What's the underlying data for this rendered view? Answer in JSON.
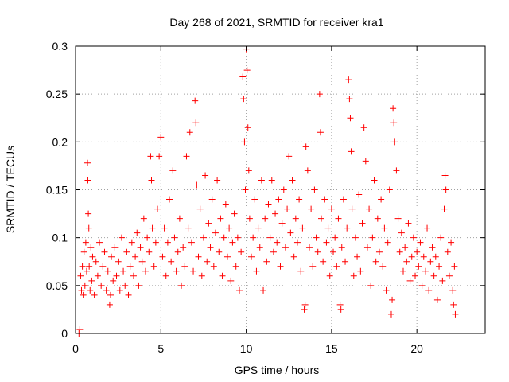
{
  "chart_data": {
    "type": "scatter",
    "title": "Day 268 of 2021, SRMTID for receiver kra1",
    "xlabel": "GPS time / hours",
    "ylabel": "SRMTID / TECUs",
    "xlim": [
      0,
      24
    ],
    "ylim": [
      0,
      0.3
    ],
    "x_ticks": [
      0,
      5,
      10,
      15,
      20
    ],
    "x_tick_labels": [
      "0",
      "5",
      "10",
      "15",
      "20"
    ],
    "y_ticks": [
      0,
      0.05,
      0.1,
      0.15,
      0.2,
      0.25,
      0.3
    ],
    "y_tick_labels": [
      "0",
      "0.05",
      "0.1",
      "0.15",
      "0.2",
      "0.25",
      "0.3"
    ],
    "grid": true,
    "marker": "+",
    "series": [
      {
        "name": "SRMTID",
        "color": "#ff0000",
        "points": [
          [
            0.2,
            0.0
          ],
          [
            0.25,
            0.004
          ],
          [
            0.3,
            0.06
          ],
          [
            0.35,
            0.045
          ],
          [
            0.4,
            0.07
          ],
          [
            0.45,
            0.04
          ],
          [
            0.5,
            0.085
          ],
          [
            0.55,
            0.05
          ],
          [
            0.6,
            0.095
          ],
          [
            0.65,
            0.065
          ],
          [
            0.7,
            0.178
          ],
          [
            0.72,
            0.16
          ],
          [
            0.75,
            0.125
          ],
          [
            0.78,
            0.11
          ],
          [
            0.8,
            0.07
          ],
          [
            0.85,
            0.045
          ],
          [
            0.9,
            0.09
          ],
          [
            0.95,
            0.055
          ],
          [
            1.0,
            0.08
          ],
          [
            1.1,
            0.04
          ],
          [
            1.2,
            0.075
          ],
          [
            1.3,
            0.06
          ],
          [
            1.4,
            0.095
          ],
          [
            1.5,
            0.05
          ],
          [
            1.6,
            0.07
          ],
          [
            1.7,
            0.085
          ],
          [
            1.8,
            0.045
          ],
          [
            1.9,
            0.065
          ],
          [
            2.0,
            0.03
          ],
          [
            2.05,
            0.04
          ],
          [
            2.1,
            0.08
          ],
          [
            2.2,
            0.055
          ],
          [
            2.3,
            0.09
          ],
          [
            2.4,
            0.06
          ],
          [
            2.5,
            0.075
          ],
          [
            2.6,
            0.045
          ],
          [
            2.7,
            0.1
          ],
          [
            2.8,
            0.065
          ],
          [
            2.9,
            0.05
          ],
          [
            3.0,
            0.085
          ],
          [
            3.1,
            0.04
          ],
          [
            3.2,
            0.07
          ],
          [
            3.3,
            0.095
          ],
          [
            3.4,
            0.06
          ],
          [
            3.5,
            0.08
          ],
          [
            3.6,
            0.105
          ],
          [
            3.7,
            0.05
          ],
          [
            3.8,
            0.09
          ],
          [
            3.9,
            0.075
          ],
          [
            4.0,
            0.12
          ],
          [
            4.1,
            0.065
          ],
          [
            4.2,
            0.1
          ],
          [
            4.3,
            0.085
          ],
          [
            4.4,
            0.185
          ],
          [
            4.45,
            0.16
          ],
          [
            4.5,
            0.11
          ],
          [
            4.6,
            0.07
          ],
          [
            4.7,
            0.095
          ],
          [
            4.8,
            0.13
          ],
          [
            4.9,
            0.185
          ],
          [
            5.0,
            0.205
          ],
          [
            5.1,
            0.08
          ],
          [
            5.2,
            0.11
          ],
          [
            5.3,
            0.06
          ],
          [
            5.4,
            0.095
          ],
          [
            5.5,
            0.14
          ],
          [
            5.6,
            0.075
          ],
          [
            5.7,
            0.17
          ],
          [
            5.8,
            0.1
          ],
          [
            5.9,
            0.065
          ],
          [
            6.0,
            0.085
          ],
          [
            6.1,
            0.12
          ],
          [
            6.2,
            0.05
          ],
          [
            6.3,
            0.09
          ],
          [
            6.4,
            0.07
          ],
          [
            6.5,
            0.185
          ],
          [
            6.6,
            0.11
          ],
          [
            6.7,
            0.21
          ],
          [
            6.8,
            0.095
          ],
          [
            6.9,
            0.065
          ],
          [
            7.0,
            0.243
          ],
          [
            7.05,
            0.22
          ],
          [
            7.1,
            0.155
          ],
          [
            7.2,
            0.08
          ],
          [
            7.3,
            0.13
          ],
          [
            7.4,
            0.06
          ],
          [
            7.5,
            0.1
          ],
          [
            7.6,
            0.165
          ],
          [
            7.7,
            0.075
          ],
          [
            7.8,
            0.115
          ],
          [
            7.9,
            0.09
          ],
          [
            8.0,
            0.14
          ],
          [
            8.1,
            0.07
          ],
          [
            8.2,
            0.105
          ],
          [
            8.3,
            0.16
          ],
          [
            8.4,
            0.085
          ],
          [
            8.5,
            0.12
          ],
          [
            8.6,
            0.06
          ],
          [
            8.7,
            0.1
          ],
          [
            8.8,
            0.135
          ],
          [
            8.9,
            0.08
          ],
          [
            9.0,
            0.11
          ],
          [
            9.1,
            0.055
          ],
          [
            9.2,
            0.095
          ],
          [
            9.3,
            0.125
          ],
          [
            9.4,
            0.07
          ],
          [
            9.5,
            0.1
          ],
          [
            9.6,
            0.045
          ],
          [
            9.7,
            0.085
          ],
          [
            9.8,
            0.268
          ],
          [
            9.85,
            0.245
          ],
          [
            9.9,
            0.2
          ],
          [
            9.95,
            0.15
          ],
          [
            10.0,
            0.297
          ],
          [
            10.05,
            0.275
          ],
          [
            10.1,
            0.215
          ],
          [
            10.15,
            0.17
          ],
          [
            10.2,
            0.12
          ],
          [
            10.3,
            0.08
          ],
          [
            10.4,
            0.1
          ],
          [
            10.5,
            0.14
          ],
          [
            10.6,
            0.065
          ],
          [
            10.7,
            0.11
          ],
          [
            10.8,
            0.09
          ],
          [
            10.9,
            0.16
          ],
          [
            11.0,
            0.045
          ],
          [
            11.1,
            0.12
          ],
          [
            11.2,
            0.075
          ],
          [
            11.3,
            0.135
          ],
          [
            11.4,
            0.1
          ],
          [
            11.5,
            0.16
          ],
          [
            11.6,
            0.085
          ],
          [
            11.7,
            0.125
          ],
          [
            11.8,
            0.095
          ],
          [
            11.9,
            0.14
          ],
          [
            12.0,
            0.07
          ],
          [
            12.1,
            0.115
          ],
          [
            12.2,
            0.15
          ],
          [
            12.3,
            0.09
          ],
          [
            12.4,
            0.13
          ],
          [
            12.5,
            0.185
          ],
          [
            12.6,
            0.105
          ],
          [
            12.7,
            0.16
          ],
          [
            12.8,
            0.08
          ],
          [
            12.9,
            0.12
          ],
          [
            13.0,
            0.095
          ],
          [
            13.1,
            0.14
          ],
          [
            13.2,
            0.065
          ],
          [
            13.3,
            0.11
          ],
          [
            13.4,
            0.025
          ],
          [
            13.45,
            0.03
          ],
          [
            13.5,
            0.195
          ],
          [
            13.6,
            0.17
          ],
          [
            13.7,
            0.09
          ],
          [
            13.8,
            0.13
          ],
          [
            13.9,
            0.07
          ],
          [
            14.0,
            0.15
          ],
          [
            14.1,
            0.1
          ],
          [
            14.2,
            0.085
          ],
          [
            14.3,
            0.25
          ],
          [
            14.35,
            0.21
          ],
          [
            14.4,
            0.12
          ],
          [
            14.5,
            0.075
          ],
          [
            14.6,
            0.14
          ],
          [
            14.7,
            0.095
          ],
          [
            14.8,
            0.11
          ],
          [
            14.9,
            0.06
          ],
          [
            15.0,
            0.13
          ],
          [
            15.1,
            0.085
          ],
          [
            15.2,
            0.1
          ],
          [
            15.3,
            0.07
          ],
          [
            15.4,
            0.12
          ],
          [
            15.5,
            0.03
          ],
          [
            15.55,
            0.025
          ],
          [
            15.6,
            0.09
          ],
          [
            15.7,
            0.14
          ],
          [
            15.8,
            0.075
          ],
          [
            15.9,
            0.11
          ],
          [
            16.0,
            0.265
          ],
          [
            16.05,
            0.245
          ],
          [
            16.1,
            0.225
          ],
          [
            16.15,
            0.19
          ],
          [
            16.2,
            0.13
          ],
          [
            16.3,
            0.06
          ],
          [
            16.4,
            0.1
          ],
          [
            16.5,
            0.08
          ],
          [
            16.6,
            0.145
          ],
          [
            16.7,
            0.065
          ],
          [
            16.8,
            0.115
          ],
          [
            16.9,
            0.215
          ],
          [
            17.0,
            0.18
          ],
          [
            17.1,
            0.09
          ],
          [
            17.2,
            0.13
          ],
          [
            17.3,
            0.05
          ],
          [
            17.4,
            0.1
          ],
          [
            17.5,
            0.16
          ],
          [
            17.6,
            0.075
          ],
          [
            17.7,
            0.12
          ],
          [
            17.8,
            0.085
          ],
          [
            17.9,
            0.14
          ],
          [
            18.0,
            0.07
          ],
          [
            18.1,
            0.11
          ],
          [
            18.2,
            0.045
          ],
          [
            18.3,
            0.095
          ],
          [
            18.4,
            0.15
          ],
          [
            18.5,
            0.02
          ],
          [
            18.55,
            0.035
          ],
          [
            18.6,
            0.235
          ],
          [
            18.65,
            0.22
          ],
          [
            18.7,
            0.2
          ],
          [
            18.8,
            0.17
          ],
          [
            18.9,
            0.12
          ],
          [
            19.0,
            0.085
          ],
          [
            19.1,
            0.105
          ],
          [
            19.2,
            0.065
          ],
          [
            19.3,
            0.09
          ],
          [
            19.4,
            0.075
          ],
          [
            19.5,
            0.115
          ],
          [
            19.6,
            0.055
          ],
          [
            19.7,
            0.08
          ],
          [
            19.8,
            0.1
          ],
          [
            19.9,
            0.06
          ],
          [
            20.0,
            0.085
          ],
          [
            20.1,
            0.07
          ],
          [
            20.2,
            0.095
          ],
          [
            20.3,
            0.05
          ],
          [
            20.4,
            0.08
          ],
          [
            20.5,
            0.065
          ],
          [
            20.6,
            0.11
          ],
          [
            20.7,
            0.045
          ],
          [
            20.8,
            0.075
          ],
          [
            20.9,
            0.09
          ],
          [
            21.0,
            0.06
          ],
          [
            21.1,
            0.08
          ],
          [
            21.2,
            0.035
          ],
          [
            21.3,
            0.07
          ],
          [
            21.4,
            0.1
          ],
          [
            21.5,
            0.055
          ],
          [
            21.6,
            0.13
          ],
          [
            21.65,
            0.165
          ],
          [
            21.7,
            0.15
          ],
          [
            21.8,
            0.085
          ],
          [
            21.9,
            0.06
          ],
          [
            22.0,
            0.095
          ],
          [
            22.1,
            0.045
          ],
          [
            22.15,
            0.03
          ],
          [
            22.2,
            0.07
          ],
          [
            22.25,
            0.02
          ]
        ]
      }
    ]
  }
}
